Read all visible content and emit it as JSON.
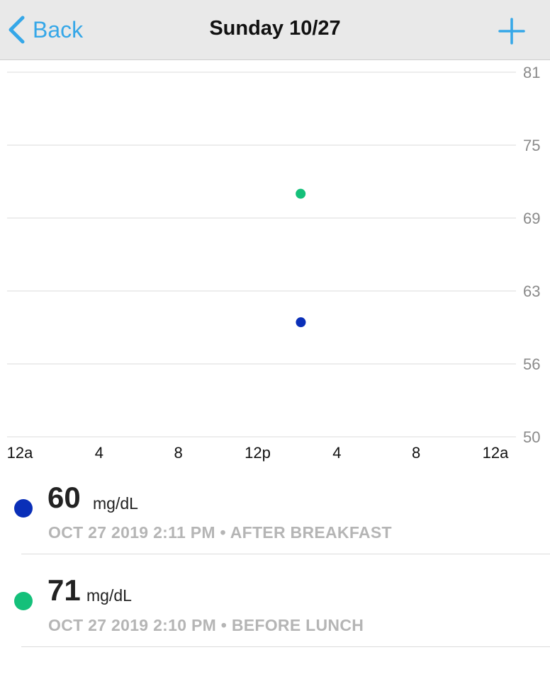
{
  "nav": {
    "back_label": "Back",
    "title": "Sunday 10/27",
    "add_icon": "plus-icon",
    "accent_color": "#35a7e8"
  },
  "chart_data": {
    "type": "scatter",
    "title": "",
    "xlabel": "",
    "ylabel": "",
    "x_tick_labels": [
      "12a",
      "4",
      "8",
      "12p",
      "4",
      "8",
      "12a"
    ],
    "x_ticks_hours": [
      0,
      4,
      8,
      12,
      16,
      20,
      24
    ],
    "y_tick_labels": [
      "81",
      "75",
      "69",
      "63",
      "56",
      "50"
    ],
    "y_ticks": [
      81,
      75,
      69,
      63,
      56,
      50
    ],
    "ylim": [
      50,
      81
    ],
    "xlim_hours": [
      0,
      24
    ],
    "grid": true,
    "points": [
      {
        "time": "2:11 PM",
        "hour": 14.18,
        "value": 60,
        "color": "#0a2fb8"
      },
      {
        "time": "2:10 PM",
        "hour": 14.17,
        "value": 71,
        "color": "#14c07a"
      }
    ]
  },
  "readings": [
    {
      "value": "60",
      "unit": "mg/dL",
      "meta": "OCT 27 2019 2:11 PM • AFTER BREAKFAST",
      "color": "#0a2fb8"
    },
    {
      "value": "71",
      "unit": "mg/dL",
      "meta": "OCT 27 2019 2:10 PM • BEFORE LUNCH",
      "color": "#14c07a"
    }
  ]
}
